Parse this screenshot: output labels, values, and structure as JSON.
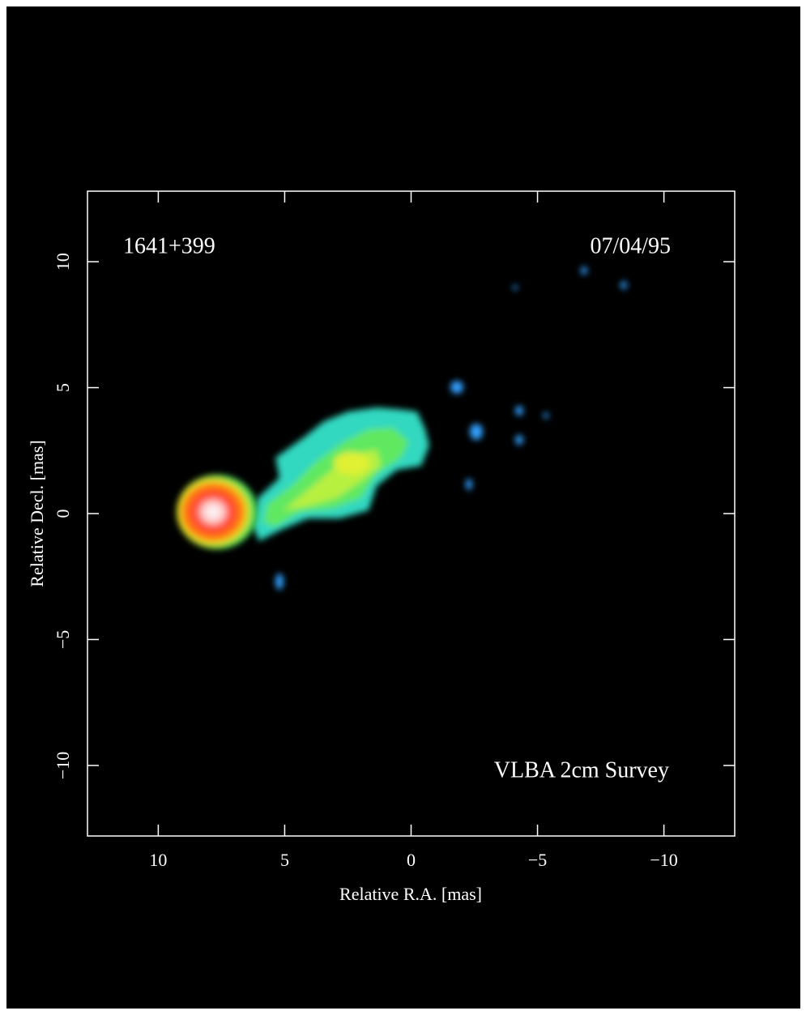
{
  "chart_data": {
    "type": "image",
    "source": "1641+399",
    "date": "07/04/95",
    "survey": "VLBA 2cm Survey",
    "x_label": "Relative R.A. [mas]",
    "y_label": "Relative Decl. [mas]",
    "xlim": [
      12.8,
      -12.8
    ],
    "ylim": [
      -12.8,
      12.8
    ],
    "xticks": [
      10,
      5,
      0,
      {
        "value": -5,
        "label": "−5"
      },
      {
        "value": -10,
        "label": "−10"
      }
    ],
    "yticks": [
      {
        "value": -10,
        "label": "−10"
      },
      {
        "value": -5,
        "label": "−5"
      },
      0,
      5,
      10
    ]
  }
}
